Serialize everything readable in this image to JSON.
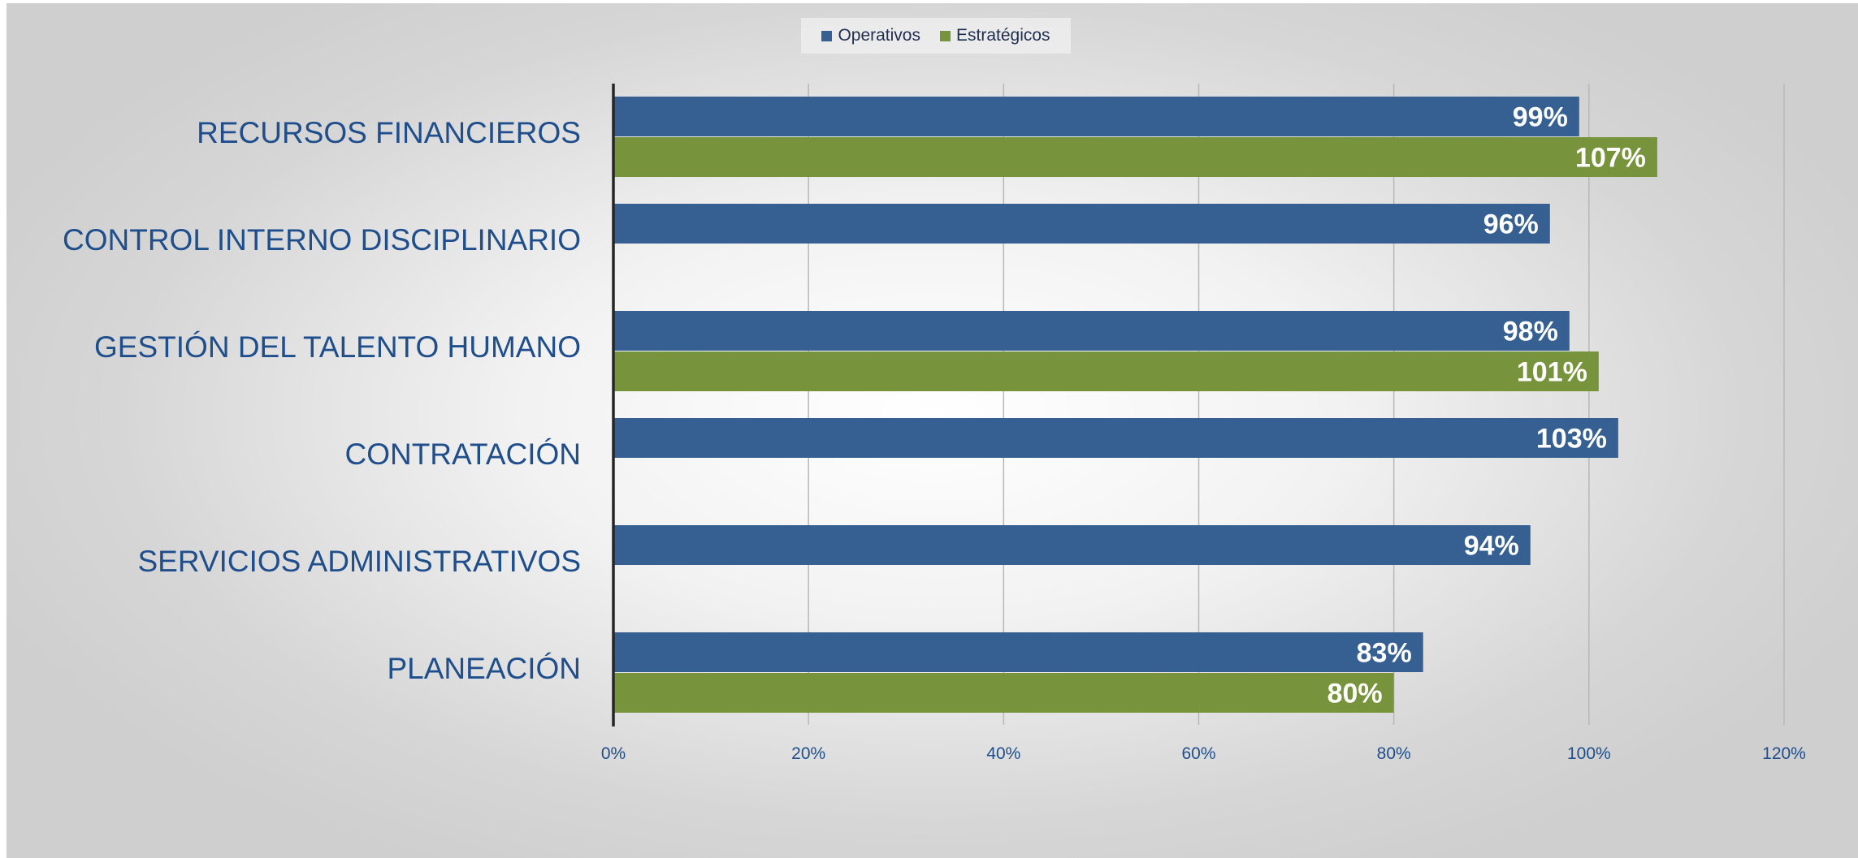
{
  "chart_data": {
    "type": "bar",
    "orientation": "horizontal",
    "categories": [
      "RECURSOS FINANCIEROS",
      "CONTROL INTERNO DISCIPLINARIO",
      "GESTIÓN DEL TALENTO HUMANO",
      "CONTRATACIÓN",
      "SERVICIOS ADMINISTRATIVOS",
      "PLANEACIÓN"
    ],
    "series": [
      {
        "name": "Operativos",
        "color": "#376092",
        "values": [
          99,
          96,
          98,
          103,
          94,
          83
        ],
        "labels": [
          "99%",
          "96%",
          "98%",
          "103%",
          "94%",
          "83%"
        ]
      },
      {
        "name": "Estratégicos",
        "color": "#77933c",
        "values": [
          107,
          null,
          101,
          null,
          null,
          80
        ],
        "labels": [
          "107%",
          "",
          "101%",
          "",
          "",
          "80%"
        ]
      }
    ],
    "xlim": [
      0,
      120
    ],
    "xticks": [
      0,
      20,
      40,
      60,
      80,
      100,
      120
    ],
    "xtick_labels": [
      "0%",
      "20%",
      "40%",
      "60%",
      "80%",
      "100%",
      "120%"
    ],
    "grid": "vertical",
    "legend_position": "top-center"
  }
}
